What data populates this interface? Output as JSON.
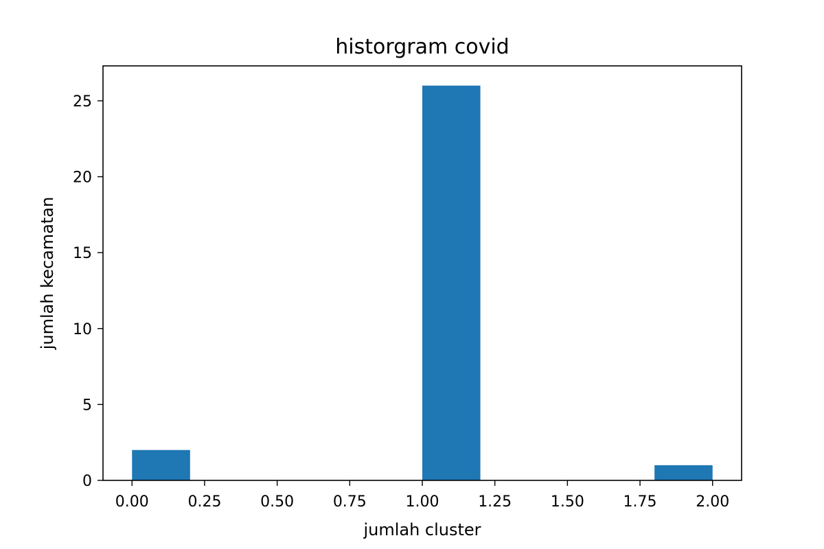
{
  "chart_data": {
    "type": "bar",
    "title": "historgram covid",
    "xlabel": "jumlah cluster",
    "ylabel": "jumlah kecamatan",
    "bins": [
      {
        "x0": 0.0,
        "x1": 0.2,
        "count": 2
      },
      {
        "x0": 0.2,
        "x1": 0.4,
        "count": 0
      },
      {
        "x0": 0.4,
        "x1": 0.6,
        "count": 0
      },
      {
        "x0": 0.6,
        "x1": 0.8,
        "count": 0
      },
      {
        "x0": 0.8,
        "x1": 1.0,
        "count": 0
      },
      {
        "x0": 1.0,
        "x1": 1.2,
        "count": 26
      },
      {
        "x0": 1.2,
        "x1": 1.4,
        "count": 0
      },
      {
        "x0": 1.4,
        "x1": 1.6,
        "count": 0
      },
      {
        "x0": 1.6,
        "x1": 1.8,
        "count": 0
      },
      {
        "x0": 1.8,
        "x1": 2.0,
        "count": 1
      }
    ],
    "xlim": [
      -0.1,
      2.1
    ],
    "ylim": [
      0,
      27.3
    ],
    "xticks": [
      0,
      0.25,
      0.5,
      0.75,
      1.0,
      1.25,
      1.5,
      1.75,
      2.0
    ],
    "xtick_labels": [
      "0.00",
      "0.25",
      "0.50",
      "0.75",
      "1.00",
      "1.25",
      "1.50",
      "1.75",
      "2.00"
    ],
    "yticks": [
      0,
      5,
      10,
      15,
      20,
      25
    ],
    "ytick_labels": [
      "0",
      "5",
      "10",
      "15",
      "20",
      "25"
    ],
    "bar_color": "#1f77b4",
    "grid": false,
    "legend": "none"
  }
}
